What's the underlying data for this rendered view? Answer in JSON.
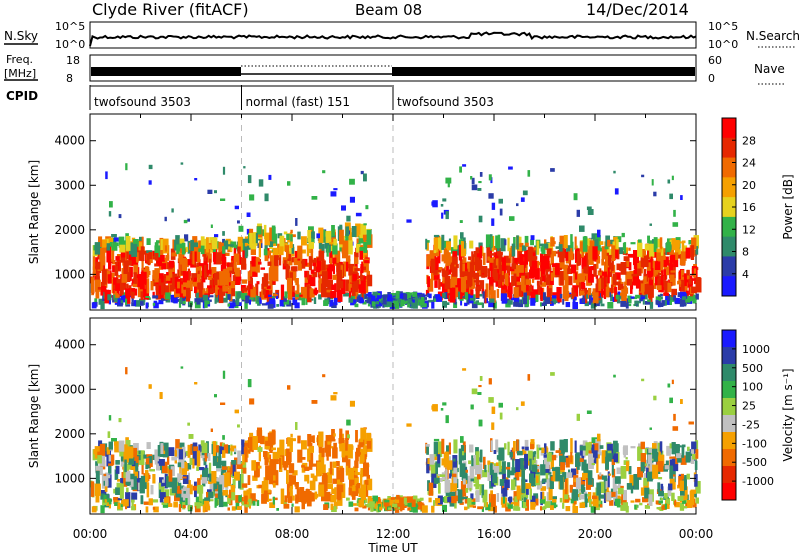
{
  "header": {
    "title": "Clyde River (fitACF)",
    "beam": "Beam 08",
    "date": "14/Dec/2014"
  },
  "noise_panel": {
    "left_label": "N.Sky",
    "left_ticks": [
      "10^5",
      "10^0"
    ],
    "right_ticks": [
      "10^5",
      "10^0"
    ],
    "right_label": "N.Search"
  },
  "freq_panel": {
    "left_label_1": "Freq.",
    "left_label_2": "[MHz]",
    "left_ticks": [
      "18",
      "8"
    ],
    "right_ticks": [
      "60",
      "0"
    ],
    "right_label": "Nave"
  },
  "cpid": {
    "label": "CPID",
    "segments": [
      {
        "label": "twofsound 3503",
        "start": 0,
        "end": 6
      },
      {
        "label": "normal (fast) 151",
        "start": 6,
        "end": 12
      },
      {
        "label": "twofsound 3503",
        "start": 12,
        "end": 24
      }
    ]
  },
  "colors": {
    "power_scale": [
      "#1a1aff",
      "#2b3ca8",
      "#2f8a6a",
      "#32b248",
      "#e6d21e",
      "#f5a000",
      "#f06a00",
      "#e62800",
      "#ff0000"
    ],
    "velocity_scale": [
      "#ff0000",
      "#e62800",
      "#f06a00",
      "#f5a000",
      "#c0c0c0",
      "#9ad040",
      "#32b248",
      "#2f8a6a",
      "#2b3ca8",
      "#1a1aff"
    ]
  },
  "chart_data": [
    {
      "type": "heatmap",
      "panel": "power",
      "xlabel": "Time UT",
      "ylabel": "Slant Range [km]",
      "xlim": [
        0,
        24
      ],
      "ylim": [
        200,
        4600
      ],
      "x_ticks": [
        "00:00",
        "04:00",
        "08:00",
        "12:00",
        "16:00",
        "20:00",
        "00:00"
      ],
      "y_ticks": [
        "1000",
        "2000",
        "3000",
        "4000"
      ],
      "colorbar_label": "Power [dB]",
      "colorbar_ticks": [
        "4",
        "8",
        "12",
        "16",
        "20",
        "24",
        "28"
      ],
      "scatter_regions": [
        {
          "t_start": 0.0,
          "t_end": 6.0,
          "range_low": 500,
          "range_high": 1800,
          "level": "high"
        },
        {
          "t_start": 6.0,
          "t_end": 11.0,
          "range_low": 600,
          "range_high": 2100,
          "level": "high"
        },
        {
          "t_start": 13.2,
          "t_end": 24.0,
          "range_low": 500,
          "range_high": 1800,
          "level": "high"
        }
      ]
    },
    {
      "type": "heatmap",
      "panel": "velocity",
      "xlabel": "Time UT",
      "ylabel": "Slant Range [km]",
      "xlim": [
        0,
        24
      ],
      "ylim": [
        200,
        4600
      ],
      "x_ticks": [
        "00:00",
        "04:00",
        "08:00",
        "12:00",
        "16:00",
        "20:00",
        "00:00"
      ],
      "y_ticks": [
        "1000",
        "2000",
        "3000",
        "4000"
      ],
      "colorbar_label": "Velocity [m s⁻¹]",
      "colorbar_ticks": [
        "1000",
        "500",
        "100",
        "25",
        "-25",
        "-100",
        "-500",
        "-1000"
      ],
      "scatter_regions": [
        {
          "t_start": 0.0,
          "t_end": 6.0,
          "range_low": 500,
          "range_high": 1800,
          "level": "mixed"
        },
        {
          "t_start": 6.0,
          "t_end": 11.0,
          "range_low": 600,
          "range_high": 2100,
          "level": "negative"
        },
        {
          "t_start": 13.2,
          "t_end": 24.0,
          "range_low": 500,
          "range_high": 1800,
          "level": "mixed"
        }
      ]
    }
  ],
  "xaxis_title": "Time UT"
}
